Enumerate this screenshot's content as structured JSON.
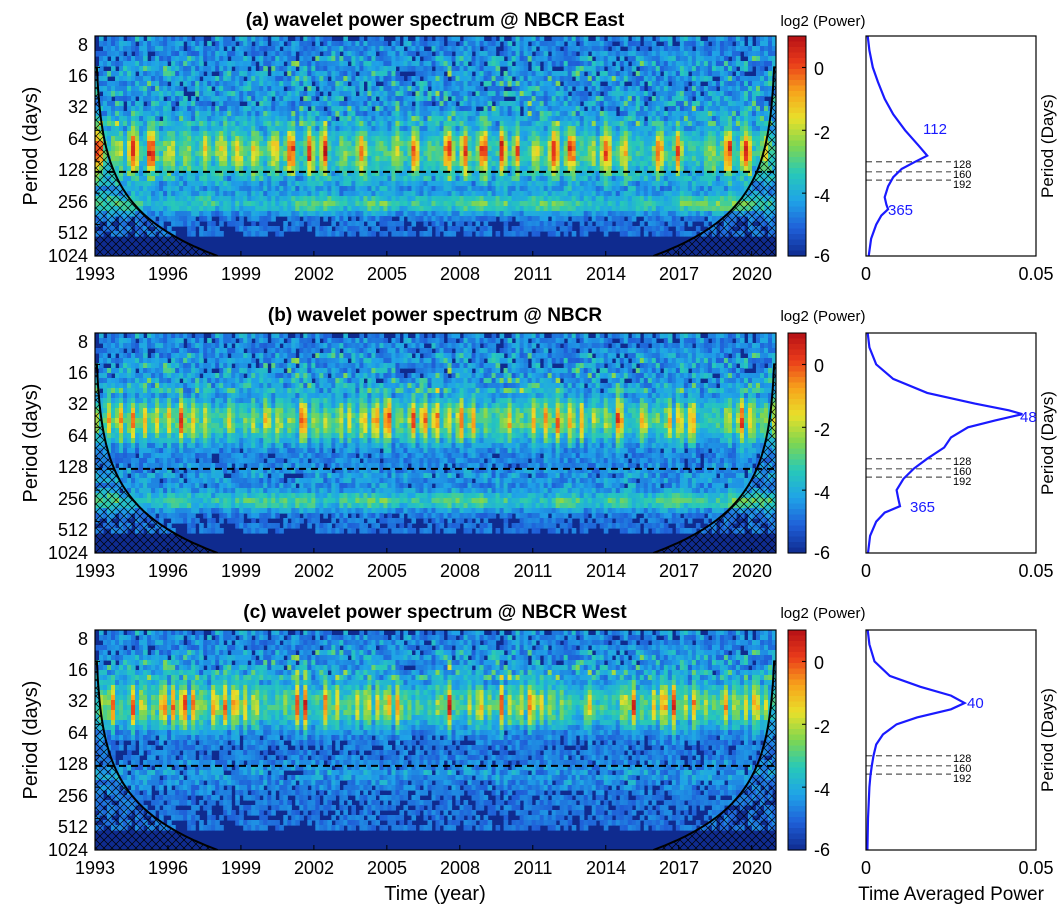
{
  "figure": {
    "xlabel": "Time (year)",
    "side_xlabel": "Time Averaged Power"
  },
  "colorscale": {
    "colors": [
      "#0f2b8f",
      "#1f5fd8",
      "#1fa3e8",
      "#27c9b8",
      "#7fd650",
      "#e8e02a",
      "#f7a21b",
      "#ea3b1a",
      "#b51016"
    ]
  },
  "chart_data": [
    {
      "type": "heatmap",
      "title": "(a) wavelet power spectrum @ NBCR East",
      "ylabel": "Period (days)",
      "xlim": [
        1993,
        2021
      ],
      "x_ticks": [
        1993,
        1996,
        1999,
        2002,
        2005,
        2008,
        2011,
        2014,
        2017,
        2020
      ],
      "x_tick_labels": [
        "1993",
        "1996",
        "1999",
        "2002",
        "2005",
        "2008",
        "2011",
        "2014",
        "2017",
        "2020"
      ],
      "y_scale": "log2",
      "ylim": [
        8,
        1024
      ],
      "y_ticks": [
        8,
        16,
        32,
        64,
        128,
        256,
        512,
        1024
      ],
      "y_tick_labels": [
        "8",
        "16",
        "32",
        "64",
        "128",
        "256",
        "512",
        "1024"
      ],
      "reference_period": 160,
      "colorbar": {
        "label": "log2 (Power)",
        "range": [
          -6,
          1
        ],
        "ticks": [
          0,
          -2,
          -4,
          -6
        ],
        "tick_labels": [
          "0",
          "-2",
          "-4",
          "-6"
        ]
      },
      "dominant_band_period": 100,
      "annual_band": true
    },
    {
      "type": "heatmap",
      "title": "(b) wavelet power spectrum @ NBCR",
      "ylabel": "Period (days)",
      "xlim": [
        1993,
        2021
      ],
      "x_ticks": [
        1993,
        1996,
        1999,
        2002,
        2005,
        2008,
        2011,
        2014,
        2017,
        2020
      ],
      "x_tick_labels": [
        "1993",
        "1996",
        "1999",
        "2002",
        "2005",
        "2008",
        "2011",
        "2014",
        "2017",
        "2020"
      ],
      "y_scale": "log2",
      "ylim": [
        8,
        1024
      ],
      "y_ticks": [
        8,
        16,
        32,
        64,
        128,
        256,
        512,
        1024
      ],
      "y_tick_labels": [
        "8",
        "16",
        "32",
        "64",
        "128",
        "256",
        "512",
        "1024"
      ],
      "reference_period": 160,
      "colorbar": {
        "label": "log2 (Power)",
        "range": [
          -6,
          1
        ],
        "ticks": [
          0,
          -2,
          -4,
          -6
        ],
        "tick_labels": [
          "0",
          "-2",
          "-4",
          "-6"
        ]
      },
      "dominant_band_period": 55,
      "annual_band": true
    },
    {
      "type": "heatmap",
      "title": "(c) wavelet power spectrum @ NBCR West",
      "ylabel": "Period (days)",
      "xlim": [
        1993,
        2021
      ],
      "x_ticks": [
        1993,
        1996,
        1999,
        2002,
        2005,
        2008,
        2011,
        2014,
        2017,
        2020
      ],
      "x_tick_labels": [
        "1993",
        "1996",
        "1999",
        "2002",
        "2005",
        "2008",
        "2011",
        "2014",
        "2017",
        "2020"
      ],
      "y_scale": "log2",
      "ylim": [
        8,
        1024
      ],
      "y_ticks": [
        8,
        16,
        32,
        64,
        128,
        256,
        512,
        1024
      ],
      "y_tick_labels": [
        "8",
        "16",
        "32",
        "64",
        "128",
        "256",
        "512",
        "1024"
      ],
      "reference_period": 160,
      "colorbar": {
        "label": "log2 (Power)",
        "range": [
          -6,
          1
        ],
        "ticks": [
          0,
          -2,
          -4,
          -6
        ],
        "tick_labels": [
          "0",
          "-2",
          "-4",
          "-6"
        ]
      },
      "dominant_band_period": 42,
      "annual_band": false
    },
    {
      "type": "line",
      "title": "",
      "ylabel": "Period (Days)",
      "xlim": [
        0,
        0.05
      ],
      "x_ticks": [
        0,
        0.05
      ],
      "x_tick_labels": [
        "0",
        "0.05"
      ],
      "y_scale": "log2",
      "ylim": [
        8,
        1024
      ],
      "reference_lines": [
        128,
        160,
        192
      ],
      "reference_labels": [
        "128",
        "160",
        "192"
      ],
      "peaks": [
        {
          "period": 112,
          "label": "112"
        },
        {
          "period": 365,
          "label": "365"
        }
      ],
      "series": [
        {
          "color": "#1a1aff",
          "points": [
            [
              8,
              0.0005
            ],
            [
              11,
              0.001
            ],
            [
              16,
              0.002
            ],
            [
              22,
              0.0035
            ],
            [
              32,
              0.0055
            ],
            [
              45,
              0.008
            ],
            [
              64,
              0.0115
            ],
            [
              90,
              0.0155
            ],
            [
              112,
              0.018
            ],
            [
              128,
              0.0145
            ],
            [
              150,
              0.0105
            ],
            [
              180,
              0.008
            ],
            [
              220,
              0.0065
            ],
            [
              280,
              0.0055
            ],
            [
              330,
              0.006
            ],
            [
              365,
              0.0065
            ],
            [
              420,
              0.0045
            ],
            [
              512,
              0.003
            ],
            [
              700,
              0.0015
            ],
            [
              1024,
              0.0008
            ]
          ]
        }
      ]
    },
    {
      "type": "line",
      "title": "",
      "ylabel": "Period (Days)",
      "xlim": [
        0,
        0.05
      ],
      "x_ticks": [
        0,
        0.05
      ],
      "x_tick_labels": [
        "0",
        "0.05"
      ],
      "y_scale": "log2",
      "ylim": [
        8,
        1024
      ],
      "reference_lines": [
        128,
        160,
        192
      ],
      "reference_labels": [
        "128",
        "160",
        "192"
      ],
      "peaks": [
        {
          "period": 48,
          "label": "48"
        },
        {
          "period": 365,
          "label": "365"
        }
      ],
      "series": [
        {
          "color": "#1a1aff",
          "points": [
            [
              8,
              0.0005
            ],
            [
              11,
              0.001
            ],
            [
              16,
              0.003
            ],
            [
              22,
              0.008
            ],
            [
              30,
              0.018
            ],
            [
              38,
              0.032
            ],
            [
              44,
              0.042
            ],
            [
              48,
              0.046
            ],
            [
              55,
              0.038
            ],
            [
              64,
              0.03
            ],
            [
              80,
              0.025
            ],
            [
              100,
              0.023
            ],
            [
              128,
              0.018
            ],
            [
              160,
              0.014
            ],
            [
              200,
              0.011
            ],
            [
              256,
              0.009
            ],
            [
              310,
              0.0095
            ],
            [
              365,
              0.01
            ],
            [
              420,
              0.0055
            ],
            [
              512,
              0.003
            ],
            [
              700,
              0.0012
            ],
            [
              1024,
              0.0006
            ]
          ]
        }
      ]
    },
    {
      "type": "line",
      "title": "",
      "ylabel": "Period (Days)",
      "xlim": [
        0,
        0.05
      ],
      "x_ticks": [
        0,
        0.05
      ],
      "x_tick_labels": [
        "0",
        "0.05"
      ],
      "y_scale": "log2",
      "ylim": [
        8,
        1024
      ],
      "reference_lines": [
        128,
        160,
        192
      ],
      "reference_labels": [
        "128",
        "160",
        "192"
      ],
      "peaks": [
        {
          "period": 40,
          "label": "40"
        }
      ],
      "series": [
        {
          "color": "#1a1aff",
          "points": [
            [
              8,
              0.0005
            ],
            [
              11,
              0.001
            ],
            [
              16,
              0.0025
            ],
            [
              22,
              0.007
            ],
            [
              28,
              0.016
            ],
            [
              34,
              0.025
            ],
            [
              40,
              0.029
            ],
            [
              46,
              0.025
            ],
            [
              55,
              0.015
            ],
            [
              64,
              0.009
            ],
            [
              80,
              0.005
            ],
            [
              100,
              0.003
            ],
            [
              128,
              0.0022
            ],
            [
              160,
              0.0017
            ],
            [
              200,
              0.0013
            ],
            [
              256,
              0.001
            ],
            [
              365,
              0.0008
            ],
            [
              512,
              0.0006
            ],
            [
              1024,
              0.0004
            ]
          ]
        }
      ]
    }
  ]
}
